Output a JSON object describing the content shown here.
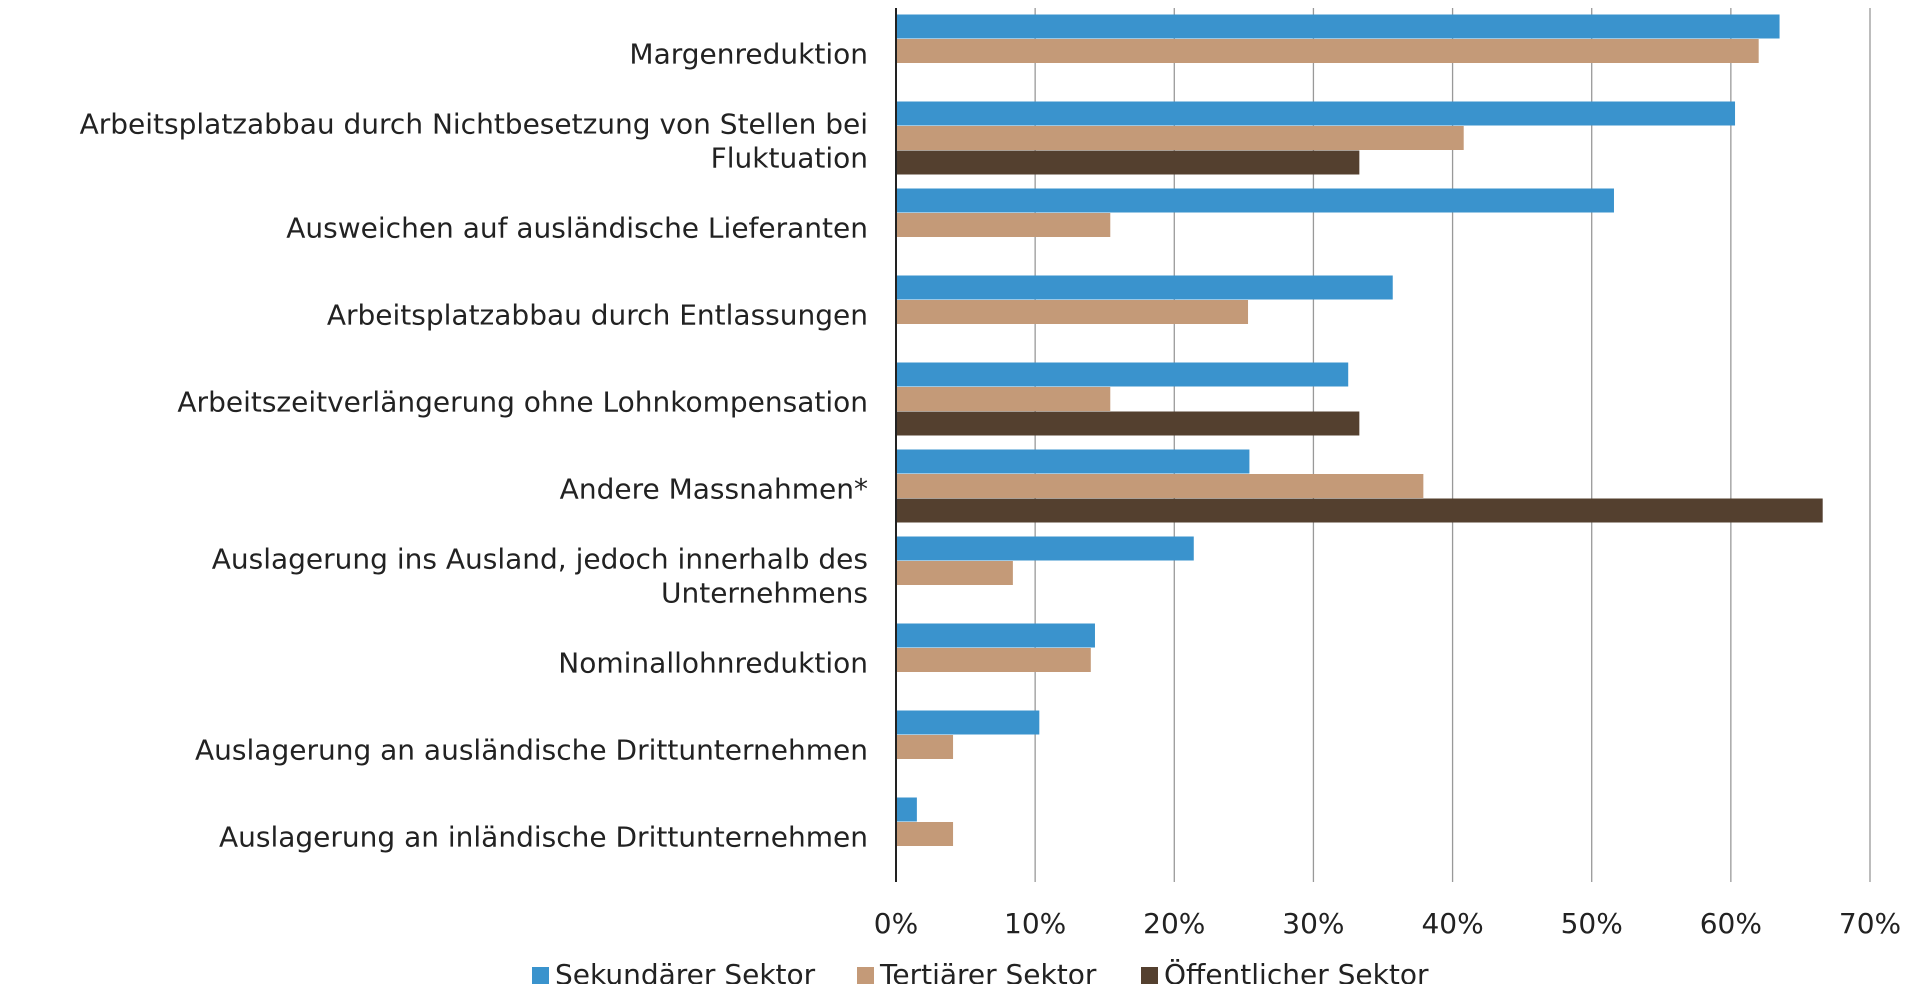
{
  "chart_data": {
    "type": "bar",
    "orientation": "horizontal",
    "categories": [
      "Margenreduktion",
      "Arbeitsplatzabbau durch Nichtbesetzung von Stellen bei Fluktuation",
      "Ausweichen auf ausländische Lieferanten",
      "Arbeitsplatzabbau durch Entlassungen",
      "Arbeitszeitverlängerung ohne Lohnkompensation",
      "Andere Massnahmen*",
      "Auslagerung ins Ausland, jedoch innerhalb des Unternehmens",
      "Nominallohnreduktion",
      "Auslagerung an ausländische Drittunternehmen",
      "Auslagerung an inländische Drittunternehmen"
    ],
    "series": [
      {
        "name": "Sekundärer Sektor",
        "color": "#3a93cd",
        "values": [
          63.5,
          60.3,
          51.6,
          35.7,
          32.5,
          25.4,
          21.4,
          14.3,
          10.3,
          1.5
        ]
      },
      {
        "name": "Tertiärer Sektor",
        "color": "#c49a78",
        "values": [
          62.0,
          40.8,
          15.4,
          25.3,
          15.4,
          37.9,
          8.4,
          14.0,
          4.1,
          4.1
        ]
      },
      {
        "name": "Öffentlicher Sektor",
        "color": "#54402f",
        "values": [
          null,
          33.3,
          null,
          null,
          33.3,
          66.6,
          null,
          null,
          null,
          null
        ]
      }
    ],
    "xlim": [
      0,
      70
    ],
    "xticks": [
      {
        "value": 0,
        "label": "0%"
      },
      {
        "value": 10,
        "label": "10%"
      },
      {
        "value": 20,
        "label": "20%"
      },
      {
        "value": 30,
        "label": "30%"
      },
      {
        "value": 40,
        "label": "40%"
      },
      {
        "value": 50,
        "label": "50%"
      },
      {
        "value": 60,
        "label": "60%"
      },
      {
        "value": 70,
        "label": "70%"
      }
    ],
    "grid": true,
    "legend": "bottom"
  }
}
